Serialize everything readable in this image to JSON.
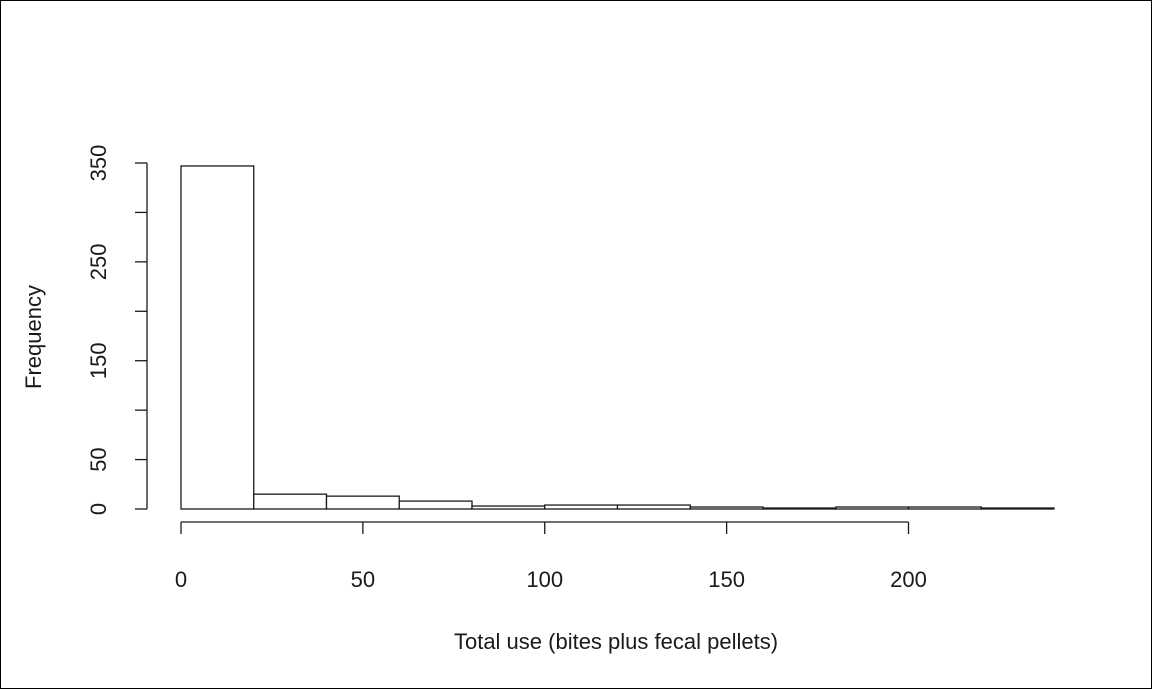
{
  "chart_data": {
    "type": "bar",
    "subtype": "histogram",
    "xlabel": "Total use (bites plus fecal pellets)",
    "ylabel": "Frequency",
    "bins": [
      {
        "x0": 0,
        "x1": 20,
        "count": 347
      },
      {
        "x0": 20,
        "x1": 40,
        "count": 15
      },
      {
        "x0": 40,
        "x1": 60,
        "count": 13
      },
      {
        "x0": 60,
        "x1": 80,
        "count": 8
      },
      {
        "x0": 80,
        "x1": 100,
        "count": 3
      },
      {
        "x0": 100,
        "x1": 120,
        "count": 4
      },
      {
        "x0": 120,
        "x1": 140,
        "count": 4
      },
      {
        "x0": 140,
        "x1": 160,
        "count": 2
      },
      {
        "x0": 160,
        "x1": 180,
        "count": 1
      },
      {
        "x0": 180,
        "x1": 200,
        "count": 2
      },
      {
        "x0": 200,
        "x1": 220,
        "count": 2
      },
      {
        "x0": 220,
        "x1": 240,
        "count": 1
      }
    ],
    "x_ticks": [
      0,
      50,
      100,
      150,
      200
    ],
    "x_tick_labels": [
      "0",
      "50",
      "100",
      "150",
      "200"
    ],
    "y_ticks": [
      0,
      50,
      100,
      150,
      200,
      250,
      300,
      350
    ],
    "y_tick_labels": [
      "0",
      "50",
      "",
      "150",
      "",
      "250",
      "",
      "350"
    ],
    "xlim": [
      0,
      240
    ],
    "ylim": [
      0,
      350
    ],
    "grid": false,
    "bar_fill": "#ffffff",
    "bar_stroke": "#1a1a1a"
  }
}
